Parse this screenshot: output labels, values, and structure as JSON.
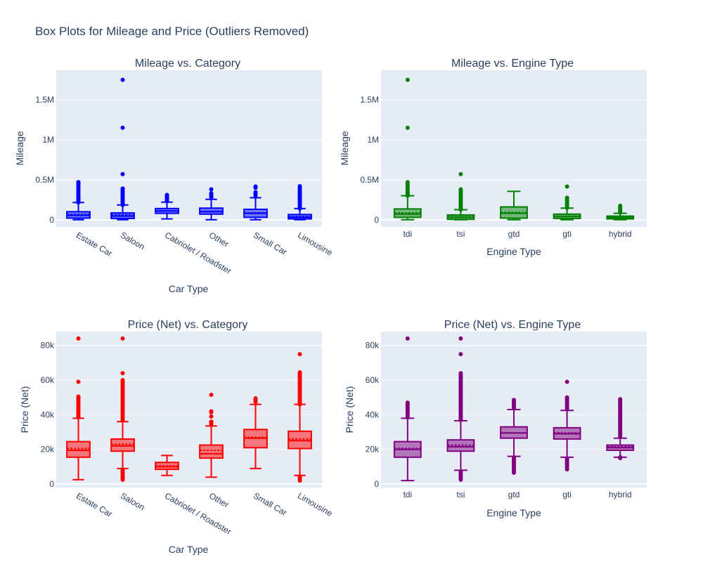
{
  "title": "Box Plots for Mileage and Price (Outliers Removed)",
  "chart_data": [
    {
      "type": "box",
      "title": "Mileage vs. Category",
      "xlabel": "Car Type",
      "ylabel": "Mileage",
      "color": "#0000ff",
      "categories": [
        "Estate Car",
        "Saloon",
        "Cabriolet / Roadster",
        "Other",
        "Small Car",
        "Limousine"
      ],
      "ylim": [
        -90000,
        1870000
      ],
      "yticks": [
        0,
        500000,
        1000000,
        1500000
      ],
      "yticklabels": [
        "0",
        "0.5M",
        "1M",
        "1.5M"
      ],
      "boxes": [
        {
          "lower_fence": 0,
          "q1": 20000,
          "median": 55000,
          "mean": 65000,
          "q3": 100000,
          "upper_fence": 215000,
          "outlier_range": [
            215000,
            470000
          ],
          "outliers": []
        },
        {
          "lower_fence": 0,
          "q1": 15000,
          "median": 45000,
          "mean": 60000,
          "q3": 85000,
          "upper_fence": 185000,
          "outlier_range": [
            185000,
            390000
          ],
          "outliers": [
            570000,
            1150000,
            1750000
          ]
        },
        {
          "lower_fence": 10000,
          "q1": 80000,
          "median": 110000,
          "mean": 110000,
          "q3": 140000,
          "upper_fence": 220000,
          "outlier_range": [
            230000,
            310000
          ],
          "outliers": []
        },
        {
          "lower_fence": 0,
          "q1": 70000,
          "median": 100000,
          "mean": 105000,
          "q3": 145000,
          "upper_fence": 255000,
          "outlier_range": [
            280000,
            330000
          ],
          "outliers": [
            380000
          ]
        },
        {
          "lower_fence": 0,
          "q1": 30000,
          "median": 80000,
          "mean": 85000,
          "q3": 130000,
          "upper_fence": 275000,
          "outlier_range": [
            300000,
            345000
          ],
          "outliers": [
            400000,
            415000
          ]
        },
        {
          "lower_fence": 0,
          "q1": 10000,
          "median": 30000,
          "mean": 40000,
          "q3": 65000,
          "upper_fence": 140000,
          "outlier_range": [
            140000,
            420000
          ],
          "outliers": []
        }
      ]
    },
    {
      "type": "box",
      "title": "Mileage vs. Engine Type",
      "xlabel": "Engine Type",
      "ylabel": "Mileage",
      "color": "#008000",
      "categories": [
        "tdi",
        "tsi",
        "gtd",
        "gti",
        "hybrid"
      ],
      "ylim": [
        -90000,
        1870000
      ],
      "yticks": [
        0,
        500000,
        1000000,
        1500000
      ],
      "yticklabels": [
        "0",
        "0.5M",
        "1M",
        "1.5M"
      ],
      "boxes": [
        {
          "lower_fence": 0,
          "q1": 30000,
          "median": 70000,
          "mean": 85000,
          "q3": 135000,
          "upper_fence": 300000,
          "outlier_range": [
            300000,
            470000
          ],
          "outliers": [
            1150000,
            1750000
          ]
        },
        {
          "lower_fence": 0,
          "q1": 5000,
          "median": 30000,
          "mean": 40000,
          "q3": 60000,
          "upper_fence": 125000,
          "outlier_range": [
            125000,
            380000
          ],
          "outliers": [
            570000
          ]
        },
        {
          "lower_fence": 0,
          "q1": 20000,
          "median": 80000,
          "mean": 90000,
          "q3": 160000,
          "upper_fence": 355000,
          "outlier_range": null,
          "outliers": []
        },
        {
          "lower_fence": 0,
          "q1": 15000,
          "median": 40000,
          "mean": 45000,
          "q3": 70000,
          "upper_fence": 145000,
          "outlier_range": [
            150000,
            275000
          ],
          "outliers": [
            415000
          ]
        },
        {
          "lower_fence": 0,
          "q1": 10000,
          "median": 25000,
          "mean": 30000,
          "q3": 45000,
          "upper_fence": 80000,
          "outlier_range": [
            90000,
            175000
          ],
          "outliers": []
        }
      ]
    },
    {
      "type": "box",
      "title": "Price (Net) vs. Category",
      "xlabel": "Car Type",
      "ylabel": "Price (Net)",
      "color": "#ff0000",
      "categories": [
        "Estate Car",
        "Saloon",
        "Cabriolet / Roadster",
        "Other",
        "Small Car",
        "Limousine"
      ],
      "ylim": [
        -2000,
        88000
      ],
      "yticks": [
        0,
        20000,
        40000,
        60000,
        80000
      ],
      "yticklabels": [
        "0",
        "20k",
        "40k",
        "60k",
        "80k"
      ],
      "boxes": [
        {
          "lower_fence": 2500,
          "q1": 15500,
          "median": 19500,
          "mean": 20500,
          "q3": 24500,
          "upper_fence": 38000,
          "outlier_range": [
            38500,
            50500
          ],
          "outliers": [
            59000,
            84000
          ]
        },
        {
          "lower_fence": 9000,
          "q1": 19000,
          "median": 22000,
          "mean": 23000,
          "q3": 26000,
          "upper_fence": 36000,
          "outlier_range": [
            37000,
            60000
          ],
          "outliers": [
            64000,
            84000
          ],
          "low_outlier_range": [
            2500,
            8000
          ]
        },
        {
          "lower_fence": 5000,
          "q1": 8500,
          "median": 10000,
          "mean": 10500,
          "q3": 12500,
          "upper_fence": 16500,
          "outlier_range": null,
          "outliers": []
        },
        {
          "lower_fence": 4000,
          "q1": 15000,
          "median": 17500,
          "mean": 19500,
          "q3": 22500,
          "upper_fence": 33500,
          "outlier_range": [
            34500,
            36000
          ],
          "outliers": [
            39000,
            41500,
            42000,
            51500
          ]
        },
        {
          "lower_fence": 9000,
          "q1": 21000,
          "median": 26500,
          "mean": 27000,
          "q3": 31500,
          "upper_fence": 46000,
          "outlier_range": [
            47500,
            49500
          ],
          "outliers": []
        },
        {
          "lower_fence": 5000,
          "q1": 20500,
          "median": 25000,
          "mean": 26000,
          "q3": 30500,
          "upper_fence": 46000,
          "outlier_range": [
            46000,
            64500
          ],
          "outliers": [
            75000
          ],
          "low_outlier_range": [
            2000,
            4500
          ]
        }
      ]
    },
    {
      "type": "box",
      "title": "Price (Net) vs. Engine Type",
      "xlabel": "Engine Type",
      "ylabel": "Price (Net)",
      "color": "#800080",
      "categories": [
        "tdi",
        "tsi",
        "gtd",
        "gti",
        "hybrid"
      ],
      "ylim": [
        -2000,
        88000
      ],
      "yticks": [
        0,
        20000,
        40000,
        60000,
        80000
      ],
      "yticklabels": [
        "0",
        "20k",
        "40k",
        "60k",
        "80k"
      ],
      "boxes": [
        {
          "lower_fence": 2000,
          "q1": 15500,
          "median": 20000,
          "mean": 20500,
          "q3": 24500,
          "upper_fence": 38000,
          "outlier_range": [
            38500,
            47000
          ],
          "outliers": [
            84000
          ]
        },
        {
          "lower_fence": 8000,
          "q1": 19000,
          "median": 21500,
          "mean": 22500,
          "q3": 25500,
          "upper_fence": 36500,
          "outlier_range": [
            37000,
            64000
          ],
          "outliers": [
            75000,
            84000
          ],
          "low_outlier_range": [
            2500,
            7000
          ]
        },
        {
          "lower_fence": 16000,
          "q1": 26500,
          "median": 29500,
          "mean": 29500,
          "q3": 33000,
          "upper_fence": 43000,
          "outlier_range": [
            44000,
            48500
          ],
          "outliers": [],
          "low_outlier_range": [
            6500,
            15000
          ]
        },
        {
          "lower_fence": 15500,
          "q1": 26000,
          "median": 29000,
          "mean": 29500,
          "q3": 32500,
          "upper_fence": 42500,
          "outlier_range": [
            43500,
            50000
          ],
          "outliers": [
            59000
          ],
          "low_outlier_range": [
            8500,
            14500
          ]
        },
        {
          "lower_fence": 15500,
          "q1": 19500,
          "median": 21000,
          "mean": 21500,
          "q3": 22500,
          "upper_fence": 26500,
          "outlier_range": [
            27500,
            49000
          ],
          "outliers": [],
          "low_outlier_range": [
            15000,
            15500
          ]
        }
      ]
    }
  ]
}
